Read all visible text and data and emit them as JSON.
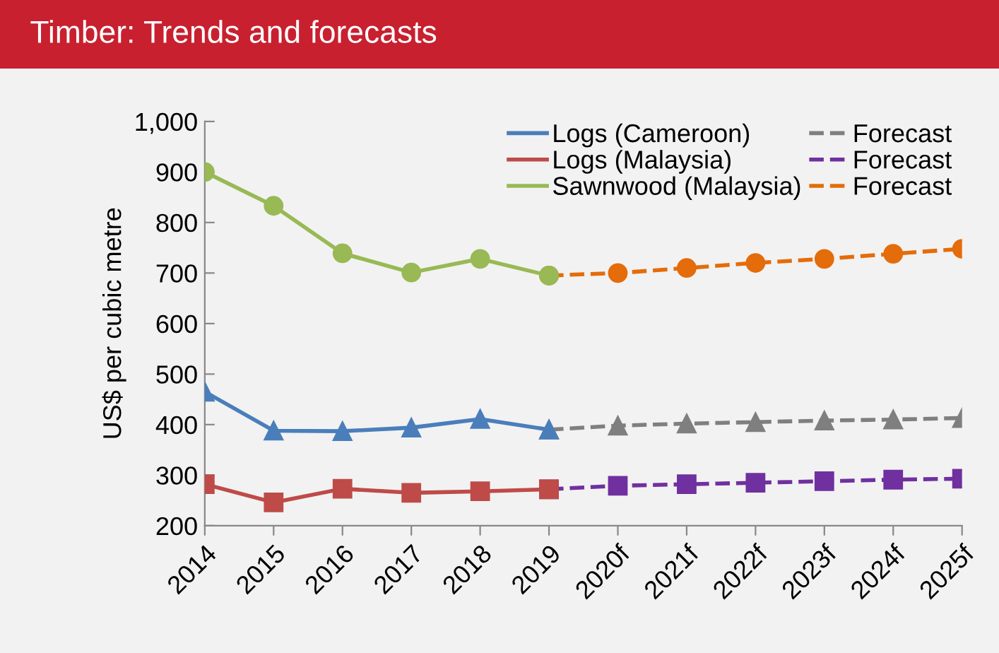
{
  "chart_data": {
    "type": "line",
    "title": "Timber: Trends and forecasts",
    "ylabel": "US$ per cubic metre",
    "categories": [
      "2014",
      "2015",
      "2016",
      "2017",
      "2018",
      "2019",
      "2020f",
      "2021f",
      "2022f",
      "2023f",
      "2024f",
      "2025f"
    ],
    "series": [
      {
        "name": "Logs (Cameroon)",
        "color": "#4a7ebb",
        "marker": "triangle",
        "line_style": "solid",
        "values": [
          465,
          388,
          387,
          394,
          411,
          390,
          null,
          null,
          null,
          null,
          null,
          null
        ]
      },
      {
        "name": "Logs (Malaysia)",
        "color": "#be4b48",
        "marker": "square",
        "line_style": "solid",
        "values": [
          282,
          246,
          273,
          265,
          268,
          272,
          null,
          null,
          null,
          null,
          null,
          null
        ]
      },
      {
        "name": "Sawnwood (Malaysia)",
        "color": "#98b954",
        "marker": "circle",
        "line_style": "solid",
        "values": [
          900,
          833,
          739,
          701,
          728,
          695,
          null,
          null,
          null,
          null,
          null,
          null
        ]
      },
      {
        "name": "Forecast",
        "color": "#7f7f7f",
        "marker": "triangle",
        "line_style": "dashed",
        "values": [
          null,
          null,
          null,
          null,
          null,
          390,
          398,
          402,
          405,
          408,
          410,
          413
        ]
      },
      {
        "name": "Forecast",
        "color": "#7030a0",
        "marker": "square",
        "line_style": "dashed",
        "values": [
          null,
          null,
          null,
          null,
          null,
          272,
          279,
          282,
          285,
          288,
          291,
          293
        ]
      },
      {
        "name": "Forecast",
        "color": "#e46c0a",
        "marker": "circle",
        "line_style": "dashed",
        "values": [
          null,
          null,
          null,
          null,
          null,
          695,
          700,
          710,
          720,
          728,
          738,
          748
        ]
      }
    ],
    "ylim": [
      200,
      1000
    ],
    "yticks": [
      200,
      300,
      400,
      500,
      600,
      700,
      800,
      900,
      {
        "value": 1000,
        "label": "1,000"
      }
    ],
    "grid": false,
    "legend": "top right"
  }
}
